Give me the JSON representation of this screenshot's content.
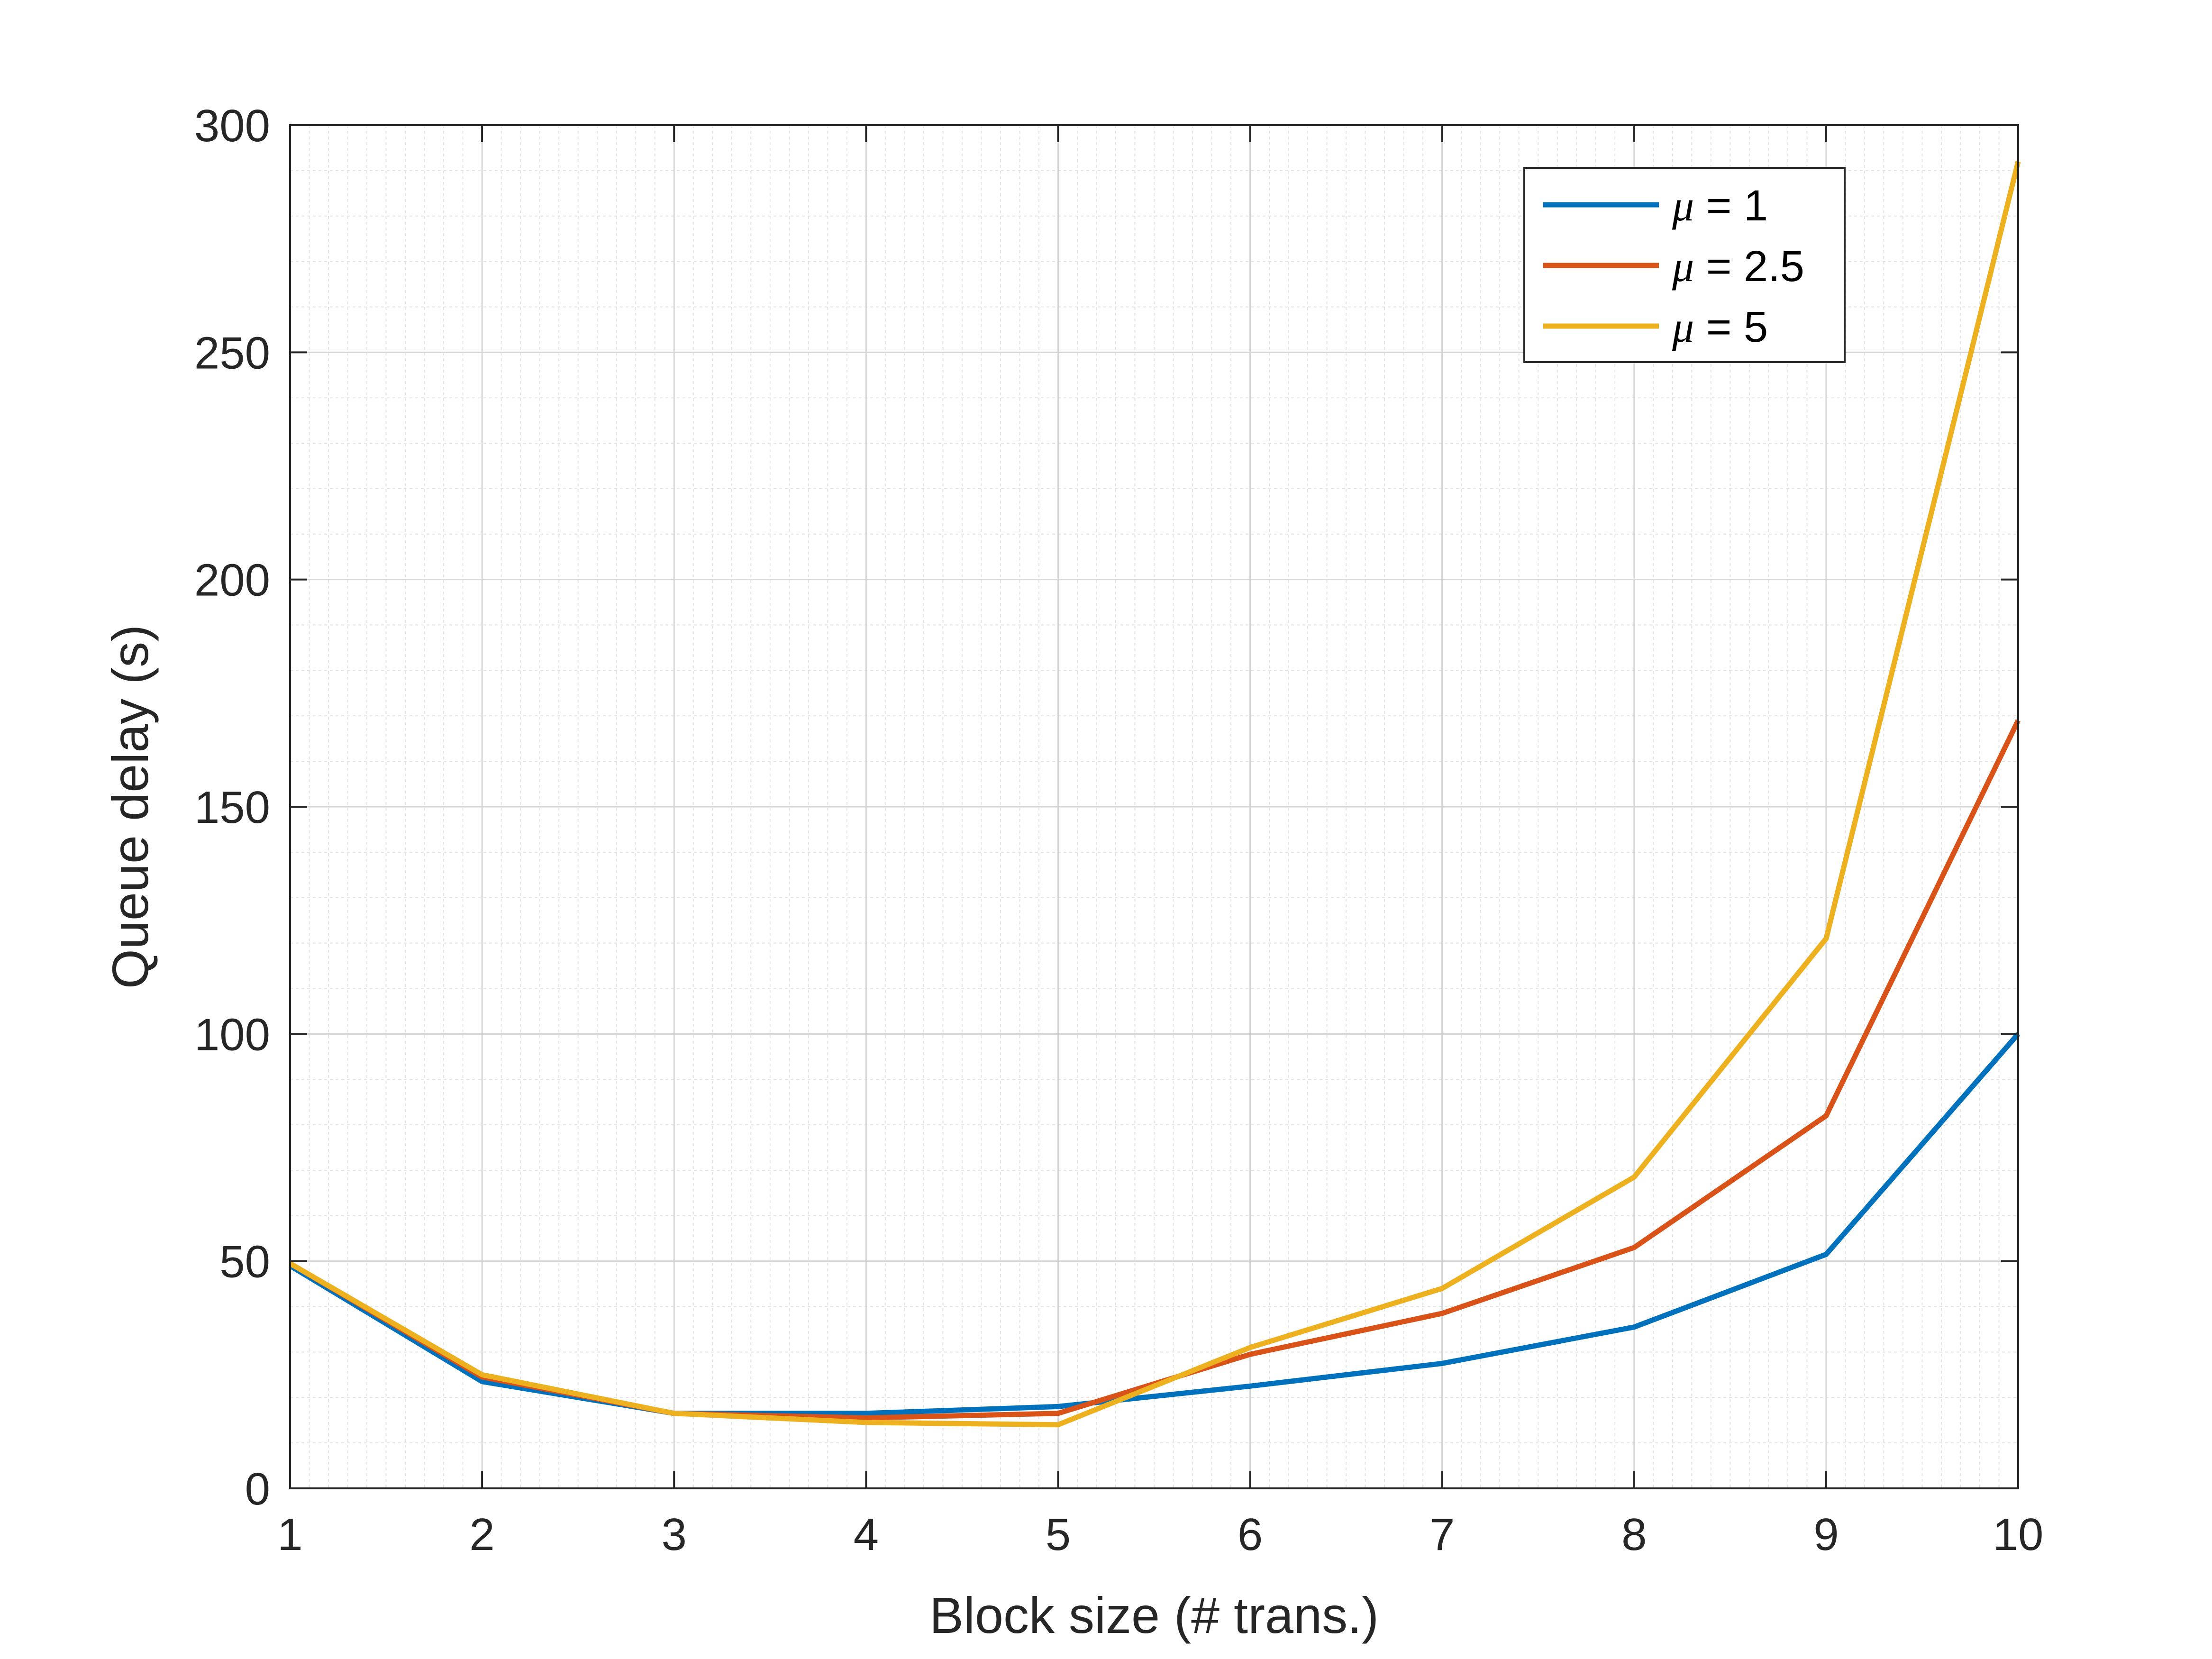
{
  "chart_data": {
    "type": "line",
    "title": "",
    "xlabel": "Block size (# trans.)",
    "ylabel": "Queue delay (s)",
    "xlim": [
      1,
      10
    ],
    "ylim": [
      0,
      300
    ],
    "xticks": [
      1,
      2,
      3,
      4,
      5,
      6,
      7,
      8,
      9,
      10
    ],
    "yticks": [
      0,
      50,
      100,
      150,
      200,
      250,
      300
    ],
    "grid": true,
    "minor_grid": true,
    "legend_position": "top-right",
    "x": [
      1,
      2,
      3,
      4,
      5,
      6,
      7,
      8,
      9,
      10
    ],
    "series": [
      {
        "name_symbol": "μ",
        "name_suffix": " = 1",
        "color": "#0072BD",
        "values": [
          49,
          23.5,
          16.5,
          16.5,
          18,
          22.5,
          27.5,
          35.5,
          51.5,
          100
        ]
      },
      {
        "name_symbol": "μ",
        "name_suffix": " = 2.5",
        "color": "#D95319",
        "values": [
          49.5,
          24.5,
          16.5,
          15.5,
          16.5,
          29.5,
          38.5,
          53,
          82,
          169
        ]
      },
      {
        "name_symbol": "μ",
        "name_suffix": " = 5",
        "color": "#EDB120",
        "values": [
          49.5,
          25,
          16.5,
          14.5,
          14,
          31,
          44,
          68.5,
          121,
          292
        ]
      }
    ]
  }
}
